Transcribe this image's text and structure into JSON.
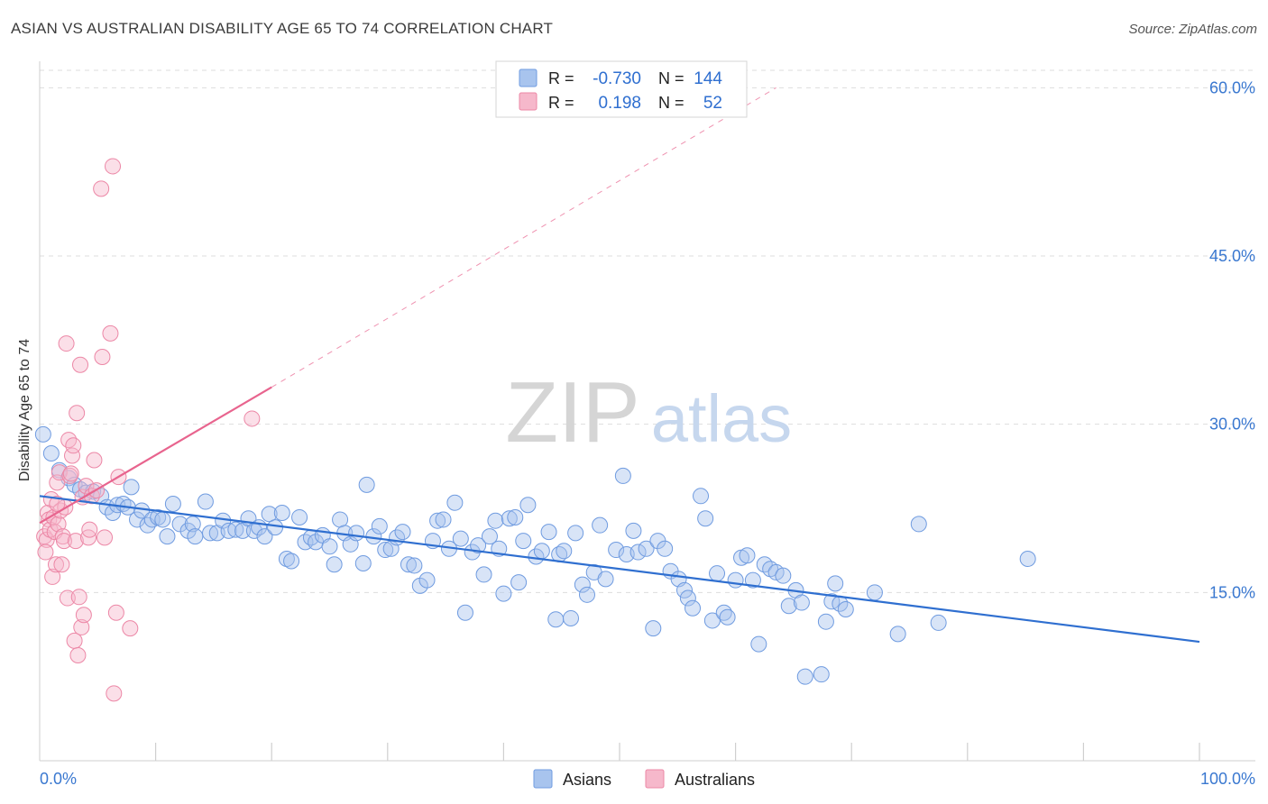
{
  "header": {
    "title": "ASIAN VS AUSTRALIAN DISABILITY AGE 65 TO 74 CORRELATION CHART",
    "source": "Source: ZipAtlas.com"
  },
  "watermark": {
    "zip": "ZIP",
    "atlas": "atlas"
  },
  "stats": [
    {
      "r_label": "R =",
      "r_value": "-0.730",
      "n_label": "N =",
      "n_value": "144",
      "color": "#a8c4ee",
      "stroke": "#6f9be0"
    },
    {
      "r_label": "R =",
      "r_value": "0.198",
      "n_label": "N =",
      "n_value": "52",
      "color": "#f6b8cb",
      "stroke": "#ec87a6"
    }
  ],
  "legend": [
    {
      "label": "Asians",
      "color": "#a8c4ee",
      "stroke": "#6f9be0"
    },
    {
      "label": "Australians",
      "color": "#f6b8cb",
      "stroke": "#ec87a6"
    }
  ],
  "colors": {
    "blue_line": "#2f6fd0",
    "pink_line": "#e8648e",
    "tick_text": "#3a78d0",
    "grid": "#dddddd"
  },
  "chart_data": {
    "type": "scatter",
    "title": "ASIAN VS AUSTRALIAN DISABILITY AGE 65 TO 74 CORRELATION CHART",
    "xlabel": "",
    "ylabel": "Disability Age 65 to 74",
    "xlim": [
      0,
      100
    ],
    "ylim": [
      0,
      63
    ],
    "x_tick_labels": [
      {
        "value": 0,
        "label": "0.0%"
      },
      {
        "value": 100,
        "label": "100.0%"
      }
    ],
    "y_ticks": [
      {
        "value": 15,
        "label": "15.0%"
      },
      {
        "value": 30,
        "label": "30.0%"
      },
      {
        "value": 45,
        "label": "45.0%"
      },
      {
        "value": 60,
        "label": "60.0%"
      }
    ],
    "grid": true,
    "legend_position": "bottom",
    "series": [
      {
        "name": "Asians",
        "color": "#a8c4ee",
        "stroke": "#6f9be0",
        "trend": {
          "x": [
            0,
            100
          ],
          "y": [
            23.6,
            10.6
          ],
          "style": "solid"
        },
        "points": [
          [
            0.3,
            29.1
          ],
          [
            1.0,
            27.4
          ],
          [
            1.7,
            25.9
          ],
          [
            2.5,
            25.2
          ],
          [
            3.0,
            24.6
          ],
          [
            3.5,
            24.2
          ],
          [
            4.0,
            23.9
          ],
          [
            4.6,
            24.0
          ],
          [
            5.3,
            23.6
          ],
          [
            5.8,
            22.6
          ],
          [
            6.3,
            22.1
          ],
          [
            6.7,
            22.8
          ],
          [
            7.2,
            22.9
          ],
          [
            7.6,
            22.6
          ],
          [
            7.9,
            24.4
          ],
          [
            8.4,
            21.5
          ],
          [
            8.8,
            22.3
          ],
          [
            9.3,
            21.0
          ],
          [
            9.7,
            21.5
          ],
          [
            10.2,
            21.7
          ],
          [
            10.6,
            21.5
          ],
          [
            11.0,
            20.0
          ],
          [
            11.5,
            22.9
          ],
          [
            12.1,
            21.1
          ],
          [
            12.8,
            20.5
          ],
          [
            13.2,
            21.1
          ],
          [
            13.4,
            20.0
          ],
          [
            14.3,
            23.1
          ],
          [
            14.7,
            20.3
          ],
          [
            15.3,
            20.3
          ],
          [
            15.8,
            21.4
          ],
          [
            16.3,
            20.5
          ],
          [
            16.9,
            20.6
          ],
          [
            17.5,
            20.5
          ],
          [
            18.0,
            21.6
          ],
          [
            18.5,
            20.5
          ],
          [
            18.9,
            20.8
          ],
          [
            19.4,
            20.0
          ],
          [
            19.8,
            22.0
          ],
          [
            20.3,
            20.8
          ],
          [
            20.9,
            22.1
          ],
          [
            21.3,
            18.0
          ],
          [
            21.7,
            17.8
          ],
          [
            22.4,
            21.7
          ],
          [
            22.9,
            19.5
          ],
          [
            23.4,
            19.9
          ],
          [
            23.8,
            19.5
          ],
          [
            24.4,
            20.1
          ],
          [
            25.0,
            19.1
          ],
          [
            25.4,
            17.5
          ],
          [
            25.9,
            21.5
          ],
          [
            26.3,
            20.3
          ],
          [
            26.8,
            19.3
          ],
          [
            27.3,
            20.3
          ],
          [
            27.9,
            17.6
          ],
          [
            28.2,
            24.6
          ],
          [
            28.8,
            20.0
          ],
          [
            29.3,
            20.9
          ],
          [
            29.8,
            18.8
          ],
          [
            30.3,
            18.9
          ],
          [
            30.8,
            19.9
          ],
          [
            31.3,
            20.4
          ],
          [
            31.8,
            17.5
          ],
          [
            32.3,
            17.4
          ],
          [
            32.8,
            15.6
          ],
          [
            33.4,
            16.1
          ],
          [
            33.9,
            19.6
          ],
          [
            34.3,
            21.4
          ],
          [
            34.8,
            21.5
          ],
          [
            35.3,
            18.9
          ],
          [
            35.8,
            23.0
          ],
          [
            36.3,
            19.8
          ],
          [
            36.7,
            13.2
          ],
          [
            37.3,
            18.6
          ],
          [
            37.8,
            19.2
          ],
          [
            38.3,
            16.6
          ],
          [
            38.8,
            20.0
          ],
          [
            39.3,
            21.4
          ],
          [
            39.6,
            18.9
          ],
          [
            40.0,
            14.9
          ],
          [
            40.5,
            21.6
          ],
          [
            41.0,
            21.7
          ],
          [
            41.3,
            15.9
          ],
          [
            41.7,
            19.6
          ],
          [
            42.1,
            22.8
          ],
          [
            42.8,
            18.2
          ],
          [
            43.3,
            18.7
          ],
          [
            43.9,
            20.4
          ],
          [
            44.5,
            12.6
          ],
          [
            44.8,
            18.4
          ],
          [
            45.2,
            18.7
          ],
          [
            45.8,
            12.7
          ],
          [
            46.2,
            20.3
          ],
          [
            46.8,
            15.7
          ],
          [
            47.2,
            14.8
          ],
          [
            47.8,
            16.8
          ],
          [
            48.3,
            21.0
          ],
          [
            48.8,
            16.2
          ],
          [
            49.7,
            18.8
          ],
          [
            50.3,
            25.4
          ],
          [
            50.6,
            18.4
          ],
          [
            51.2,
            20.5
          ],
          [
            51.6,
            18.6
          ],
          [
            52.3,
            18.9
          ],
          [
            52.9,
            11.8
          ],
          [
            53.3,
            19.6
          ],
          [
            53.9,
            18.9
          ],
          [
            54.4,
            16.9
          ],
          [
            55.1,
            16.2
          ],
          [
            55.6,
            15.2
          ],
          [
            55.9,
            14.5
          ],
          [
            56.3,
            13.6
          ],
          [
            57.0,
            23.6
          ],
          [
            57.4,
            21.6
          ],
          [
            58.0,
            12.5
          ],
          [
            58.4,
            16.7
          ],
          [
            59.0,
            13.2
          ],
          [
            59.3,
            12.8
          ],
          [
            60.0,
            16.1
          ],
          [
            60.5,
            18.1
          ],
          [
            61.0,
            18.3
          ],
          [
            61.5,
            16.1
          ],
          [
            62.0,
            10.4
          ],
          [
            62.5,
            17.5
          ],
          [
            63.0,
            17.1
          ],
          [
            63.5,
            16.8
          ],
          [
            64.1,
            16.5
          ],
          [
            64.6,
            13.8
          ],
          [
            65.2,
            15.2
          ],
          [
            65.7,
            14.1
          ],
          [
            66.0,
            7.5
          ],
          [
            67.4,
            7.7
          ],
          [
            67.8,
            12.4
          ],
          [
            68.3,
            14.2
          ],
          [
            68.6,
            15.8
          ],
          [
            69.0,
            14.0
          ],
          [
            69.5,
            13.5
          ],
          [
            72.0,
            15.0
          ],
          [
            74.0,
            11.3
          ],
          [
            75.8,
            21.1
          ],
          [
            77.5,
            12.3
          ],
          [
            85.2,
            18.0
          ]
        ]
      },
      {
        "name": "Australians",
        "color": "#f6b8cb",
        "stroke": "#ec87a6",
        "trend": {
          "x": [
            0,
            20
          ],
          "y": [
            21.2,
            33.3
          ],
          "style": "solid",
          "extended_to": [
            63.5,
            60.0
          ]
        },
        "points": [
          [
            0.4,
            20.0
          ],
          [
            0.6,
            19.7
          ],
          [
            0.7,
            22.1
          ],
          [
            0.8,
            21.5
          ],
          [
            0.9,
            20.6
          ],
          [
            1.0,
            23.3
          ],
          [
            1.1,
            16.4
          ],
          [
            1.2,
            21.7
          ],
          [
            1.3,
            20.4
          ],
          [
            1.4,
            17.5
          ],
          [
            1.5,
            24.8
          ],
          [
            1.6,
            21.1
          ],
          [
            1.7,
            25.7
          ],
          [
            1.8,
            22.3
          ],
          [
            1.9,
            17.5
          ],
          [
            2.0,
            20.0
          ],
          [
            2.1,
            19.6
          ],
          [
            2.2,
            22.6
          ],
          [
            2.3,
            37.2
          ],
          [
            2.4,
            14.5
          ],
          [
            2.5,
            28.6
          ],
          [
            2.6,
            25.4
          ],
          [
            2.7,
            25.6
          ],
          [
            2.8,
            27.2
          ],
          [
            2.9,
            28.1
          ],
          [
            3.0,
            10.7
          ],
          [
            3.1,
            19.6
          ],
          [
            3.2,
            31.0
          ],
          [
            3.3,
            9.4
          ],
          [
            3.4,
            14.6
          ],
          [
            3.5,
            35.3
          ],
          [
            3.6,
            11.9
          ],
          [
            3.7,
            23.5
          ],
          [
            3.8,
            13.0
          ],
          [
            4.0,
            24.5
          ],
          [
            4.2,
            19.9
          ],
          [
            4.3,
            20.6
          ],
          [
            4.5,
            23.6
          ],
          [
            4.7,
            26.8
          ],
          [
            4.9,
            24.1
          ],
          [
            5.3,
            51.0
          ],
          [
            5.4,
            36.0
          ],
          [
            5.6,
            19.9
          ],
          [
            6.1,
            38.1
          ],
          [
            6.3,
            53.0
          ],
          [
            6.6,
            13.2
          ],
          [
            6.8,
            25.3
          ],
          [
            7.8,
            11.8
          ],
          [
            6.4,
            6.0
          ],
          [
            18.3,
            30.5
          ],
          [
            0.5,
            18.6
          ],
          [
            1.5,
            22.9
          ]
        ]
      }
    ]
  }
}
